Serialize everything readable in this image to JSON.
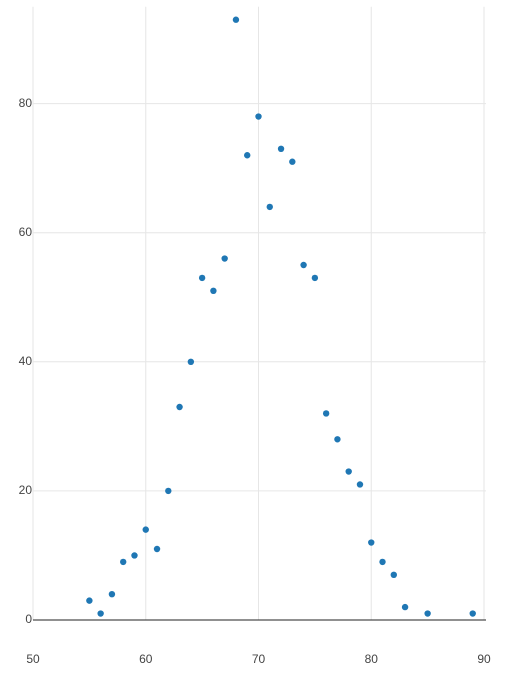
{
  "chart_data": {
    "type": "scatter",
    "x": [
      55,
      56,
      57,
      58,
      59,
      60,
      61,
      62,
      63,
      64,
      65,
      66,
      67,
      68,
      69,
      70,
      71,
      72,
      73,
      74,
      75,
      76,
      77,
      78,
      79,
      80,
      81,
      82,
      83,
      85,
      89
    ],
    "values": [
      3,
      1,
      4,
      9,
      10,
      14,
      11,
      20,
      33,
      40,
      53,
      51,
      56,
      93,
      72,
      78,
      64,
      73,
      71,
      55,
      53,
      32,
      28,
      23,
      21,
      12,
      9,
      7,
      2,
      1,
      1
    ],
    "color": "#1f77b4",
    "xlim": [
      50,
      90
    ],
    "xticks": [
      50,
      60,
      70,
      80,
      90
    ],
    "ylim": [
      0,
      95
    ],
    "yticks": [
      0,
      20,
      40,
      60,
      80
    ],
    "grid": true
  }
}
